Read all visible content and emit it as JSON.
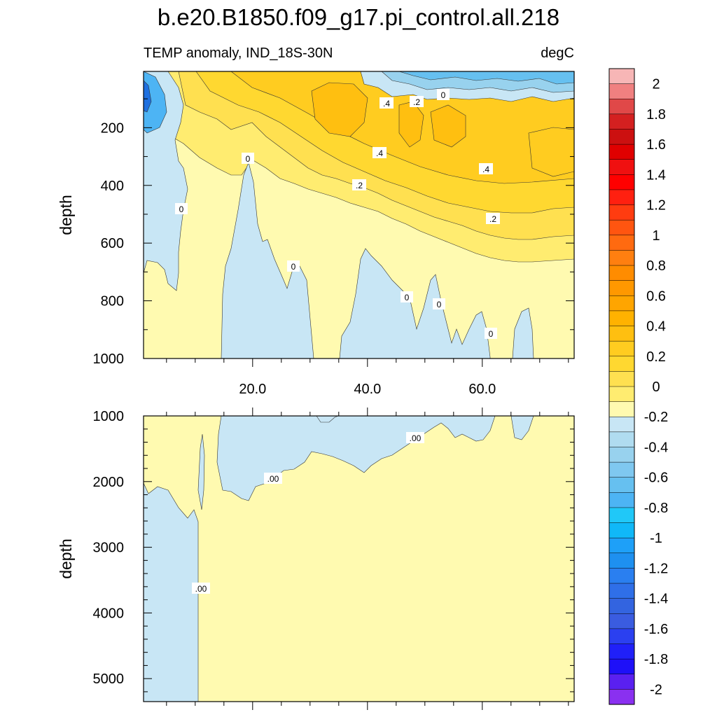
{
  "chart_data": {
    "type": "contour",
    "title": "b.e20.B1850.f09_g17.pi_control.all.218",
    "subtitle_left": "TEMP anomaly, IND_18S-30N",
    "subtitle_right": "degC",
    "colorbar": {
      "levels": [
        -2,
        -1.8,
        -1.6,
        -1.4,
        -1.2,
        -1,
        -0.8,
        -0.6,
        -0.4,
        -0.2,
        0,
        0.2,
        0.4,
        0.6,
        0.8,
        1,
        1.2,
        1.4,
        1.6,
        1.8,
        2
      ],
      "labels": [
        "2",
        "1.8",
        "1.6",
        "1.4",
        "1.2",
        "1",
        "0.8",
        "0.6",
        "0.4",
        "0.2",
        "0",
        "-0.2",
        "-0.4",
        "-0.6",
        "-0.8",
        "-1",
        "-1.2",
        "-1.4",
        "-1.6",
        "-1.8",
        "-2"
      ],
      "colors_top_to_bottom": [
        "#F7B6B6",
        "#F08080",
        "#E04848",
        "#D42020",
        "#CC1010",
        "#E00000",
        "#F01010",
        "#FF0000",
        "#FF2010",
        "#FF3C10",
        "#FF5510",
        "#FF6A10",
        "#FF7F10",
        "#FF8C00",
        "#FF9800",
        "#FFA500",
        "#FFB200",
        "#FFBF10",
        "#FFCC20",
        "#FFD830",
        "#FFE050",
        "#FFEC70",
        "#FFFAB0",
        "#C8E6F5",
        "#B0DCF0",
        "#98D2EE",
        "#7FC8F0",
        "#66C0F0",
        "#4DB4F4",
        "#20C8F8",
        "#10B8F8",
        "#1EA0F8",
        "#1E90F0",
        "#2A7FF0",
        "#2F6FE8",
        "#3364E0",
        "#3A5CE0",
        "#2B40F0",
        "#2020F8",
        "#1E10F8",
        "#5A20F0",
        "#8A30F0"
      ]
    },
    "panels": [
      {
        "id": "upper",
        "xlabel": "",
        "ylabel": "depth",
        "xlim": [
          1,
          76
        ],
        "ylim": [
          1000,
          5
        ],
        "x_ticks": [
          20,
          40,
          60
        ],
        "x_tick_labels": [
          "20.0",
          "40.0",
          "60.0"
        ],
        "y_ticks": [
          200,
          400,
          600,
          800,
          1000
        ],
        "y_tick_labels": [
          "200",
          "400",
          "600",
          "800",
          "1000"
        ],
        "contour_labels": [
          "0",
          "0",
          "0",
          "0",
          "0",
          "0",
          ".2",
          ".2",
          ".2",
          ".4",
          ".4",
          ".4",
          "0"
        ]
      },
      {
        "id": "lower",
        "xlabel": "",
        "ylabel": "depth",
        "xlim": [
          1,
          76
        ],
        "ylim": [
          5350,
          1000
        ],
        "y_ticks": [
          1000,
          2000,
          3000,
          4000,
          5000
        ],
        "y_tick_labels": [
          "1000",
          "2000",
          "3000",
          "4000",
          "5000"
        ],
        "contour_labels": [
          ".00",
          ".00",
          ".00"
        ]
      }
    ]
  }
}
